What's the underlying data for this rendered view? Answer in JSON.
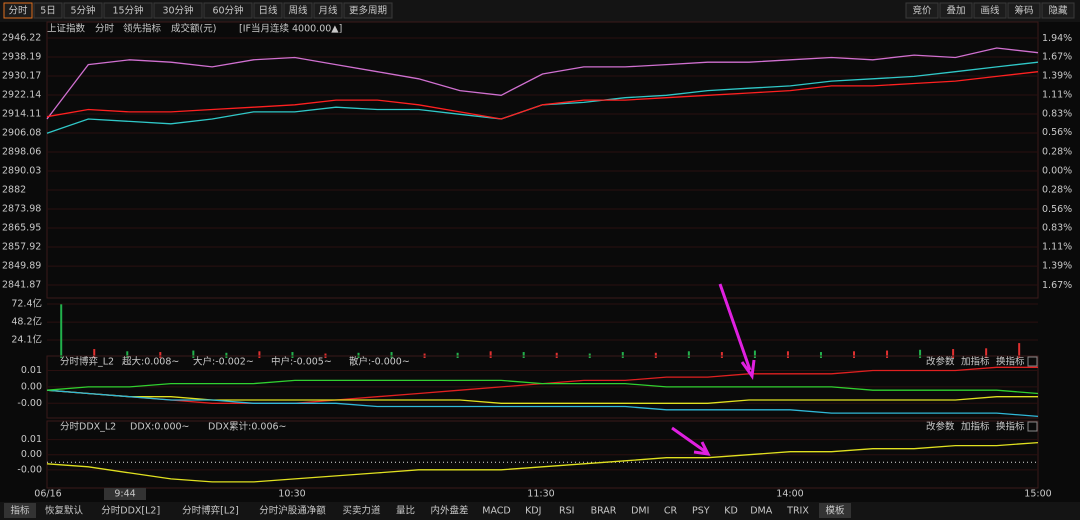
{
  "toolbar": {
    "left": [
      "分时",
      "5日",
      "5分钟",
      "15分钟",
      "30分钟",
      "60分钟",
      "日线",
      "周线",
      "月线",
      "更多周期"
    ],
    "right": [
      "竞价",
      "叠加",
      "画线",
      "筹码",
      "隐藏"
    ]
  },
  "price_panel": {
    "legend": [
      "上证指数",
      "分时",
      "领先指标",
      "成交额(元)",
      "[IF当月连续 4000.00▲]"
    ],
    "ylim": [
      2836.4,
      2949.6
    ],
    "yticks": [
      2946.22,
      2938.19,
      2930.17,
      2922.14,
      2914.11,
      2906.08,
      2898.06,
      2890.03,
      2882.0,
      2873.98,
      2865.95,
      2857.92,
      2849.89,
      2841.87
    ],
    "y2lim": [
      -1.856,
      2.061
    ],
    "y2ticks": [
      {
        "value": 1.94,
        "label": "1.94%"
      },
      {
        "value": 1.67,
        "label": "1.67%"
      },
      {
        "value": 1.39,
        "label": "1.39%"
      },
      {
        "value": 1.11,
        "label": "1.11%"
      },
      {
        "value": 0.83,
        "label": "0.83%"
      },
      {
        "value": 0.56,
        "label": "0.56%"
      },
      {
        "value": 0.28,
        "label": "0.28%"
      },
      {
        "value": 0,
        "label": "0.00%"
      },
      {
        "value": -0.28,
        "label": "0.28%"
      },
      {
        "value": -0.56,
        "label": "0.56%"
      },
      {
        "value": -0.83,
        "label": "0.83%"
      },
      {
        "value": -1.11,
        "label": "1.11%"
      },
      {
        "value": -1.39,
        "label": "1.39%"
      },
      {
        "value": -1.67,
        "label": "1.67%"
      }
    ],
    "series": [
      {
        "color": "#d070d0",
        "values": [
          2912,
          2935,
          2937,
          2936,
          2934,
          2937,
          2938,
          2935,
          2932,
          2929,
          2924,
          2922,
          2931,
          2934,
          2934,
          2935,
          2936,
          2936,
          2937,
          2938,
          2937,
          2939,
          2938,
          2942,
          2940
        ]
      },
      {
        "color": "#30c8c8",
        "values": [
          2906,
          2912,
          2911,
          2910,
          2912,
          2915,
          2915,
          2917,
          2916,
          2916,
          2914,
          2912,
          2918,
          2919,
          2921,
          2922,
          2924,
          2925,
          2926,
          2928,
          2929,
          2930,
          2932,
          2934,
          2936
        ]
      },
      {
        "color": "#ff2020",
        "values": [
          2913,
          2916,
          2915,
          2915,
          2916,
          2917,
          2918,
          2920,
          2920,
          2918,
          2915,
          2912,
          2918,
          2920,
          2920,
          2921,
          2922,
          2923,
          2924,
          2926,
          2926,
          2927,
          2928,
          2930,
          2932
        ]
      }
    ]
  },
  "volume_panel": {
    "ylim": [
      0,
      77.8
    ],
    "yticks": [
      {
        "value": 72.4,
        "label": "72.4亿"
      },
      {
        "value": 48.2,
        "label": "48.2亿"
      },
      {
        "value": 24.1,
        "label": "24.1亿"
      }
    ],
    "values": [
      72,
      12,
      9,
      8,
      10,
      7,
      9,
      8,
      6,
      7,
      8,
      6,
      7,
      9,
      8,
      7,
      6,
      8,
      7,
      9,
      8,
      10,
      9,
      8,
      9,
      10,
      11,
      12,
      13,
      20
    ],
    "colors": [
      "#22b14c",
      "#e03030",
      "#22b14c",
      "#e03030",
      "#22b14c",
      "#22b14c",
      "#e03030",
      "#22b14c",
      "#e03030",
      "#22b14c",
      "#22b14c",
      "#e03030",
      "#22b14c",
      "#e03030",
      "#22b14c",
      "#e03030",
      "#22b14c",
      "#22b14c",
      "#e03030",
      "#22b14c",
      "#e03030",
      "#22b14c",
      "#e03030",
      "#22b14c",
      "#e03030",
      "#e03030",
      "#22b14c",
      "#e03030",
      "#e03030",
      "#e03030"
    ]
  },
  "game_panel": {
    "title": "分时博弈_L2",
    "buttons": [
      "改参数",
      "加指标",
      "换指标"
    ],
    "ylim": [
      -0.0085,
      0.008
    ],
    "yticks": [
      {
        "value": 0.006,
        "label": "0.01"
      },
      {
        "value": 0.001,
        "label": "0.00"
      },
      {
        "value": -0.004,
        "label": "-0.00"
      }
    ],
    "series": [
      {
        "name": "超大:0.008~",
        "color": "#e02020",
        "values": [
          0,
          -0.001,
          -0.002,
          -0.003,
          -0.004,
          -0.004,
          -0.004,
          -0.003,
          -0.002,
          -0.001,
          0,
          0.001,
          0.002,
          0.003,
          0.003,
          0.004,
          0.004,
          0.005,
          0.005,
          0.005,
          0.006,
          0.006,
          0.006,
          0.007,
          0.007
        ]
      },
      {
        "name": "大户:-0.002~",
        "color": "#e0e020",
        "values": [
          0,
          -0.001,
          -0.002,
          -0.002,
          -0.003,
          -0.003,
          -0.003,
          -0.003,
          -0.003,
          -0.003,
          -0.003,
          -0.004,
          -0.004,
          -0.004,
          -0.004,
          -0.004,
          -0.004,
          -0.003,
          -0.003,
          -0.003,
          -0.003,
          -0.003,
          -0.003,
          -0.002,
          -0.002
        ]
      },
      {
        "name": "中户:-0.005~",
        "color": "#30b8d8",
        "values": [
          0,
          -0.001,
          -0.002,
          -0.003,
          -0.003,
          -0.004,
          -0.004,
          -0.004,
          -0.005,
          -0.005,
          -0.005,
          -0.005,
          -0.005,
          -0.005,
          -0.005,
          -0.006,
          -0.006,
          -0.006,
          -0.006,
          -0.007,
          -0.007,
          -0.007,
          -0.007,
          -0.007,
          -0.008
        ]
      },
      {
        "name": "散户:-0.000~",
        "color": "#30d030",
        "values": [
          0,
          0.001,
          0.001,
          0.002,
          0.002,
          0.002,
          0.003,
          0.003,
          0.003,
          0.003,
          0.003,
          0.003,
          0.002,
          0.002,
          0.002,
          0.001,
          0.001,
          0.001,
          0.001,
          0.001,
          0,
          0,
          0,
          0,
          -0.001
        ]
      }
    ]
  },
  "ddx_panel": {
    "title": "分时DDX_L2",
    "buttons": [
      "改参数",
      "加指标",
      "换指标"
    ],
    "ylim": [
      -0.01,
      0.0095
    ],
    "yticks": [
      {
        "value": 0.006,
        "label": "0.01"
      },
      {
        "value": 0.001,
        "label": "0.00"
      },
      {
        "value": -0.004,
        "label": "-0.00"
      }
    ],
    "series": [
      {
        "name": "DDX:0.000~",
        "color": "#e0e0e0",
        "dotted": true,
        "values": [
          -0.0015,
          -0.0015,
          -0.0015,
          -0.0015,
          -0.0015,
          -0.0015,
          -0.0015,
          -0.0015,
          -0.0015,
          -0.0015,
          -0.0015,
          -0.0015,
          -0.0015,
          -0.0015,
          -0.0015,
          -0.0015,
          -0.0015,
          -0.0015,
          -0.0015,
          -0.0015,
          -0.0015,
          -0.0015,
          -0.0015,
          -0.0015,
          -0.0015
        ]
      },
      {
        "name": "DDX累计:0.006~",
        "color": "#e0e020",
        "values": [
          -0.002,
          -0.003,
          -0.005,
          -0.007,
          -0.008,
          -0.008,
          -0.007,
          -0.006,
          -0.005,
          -0.004,
          -0.004,
          -0.004,
          -0.003,
          -0.002,
          -0.001,
          0,
          0,
          0.001,
          0.002,
          0.002,
          0.003,
          0.003,
          0.004,
          0.004,
          0.005
        ]
      }
    ]
  },
  "xaxis": {
    "labels": [
      "06/16",
      "9:44",
      "10:30",
      "11:30",
      "14:00",
      "15:00"
    ]
  },
  "tabs": [
    "指标",
    "恢复默认",
    "分时DDX[L2]",
    "分时博弈[L2]",
    "分时沪股通净额",
    "买卖力道",
    "量比",
    "内外盘差",
    "MACD",
    "KDJ",
    "RSI",
    "BRAR",
    "DMI",
    "CR",
    "PSY",
    "KD",
    "DMA",
    "TRIX",
    "模板"
  ]
}
